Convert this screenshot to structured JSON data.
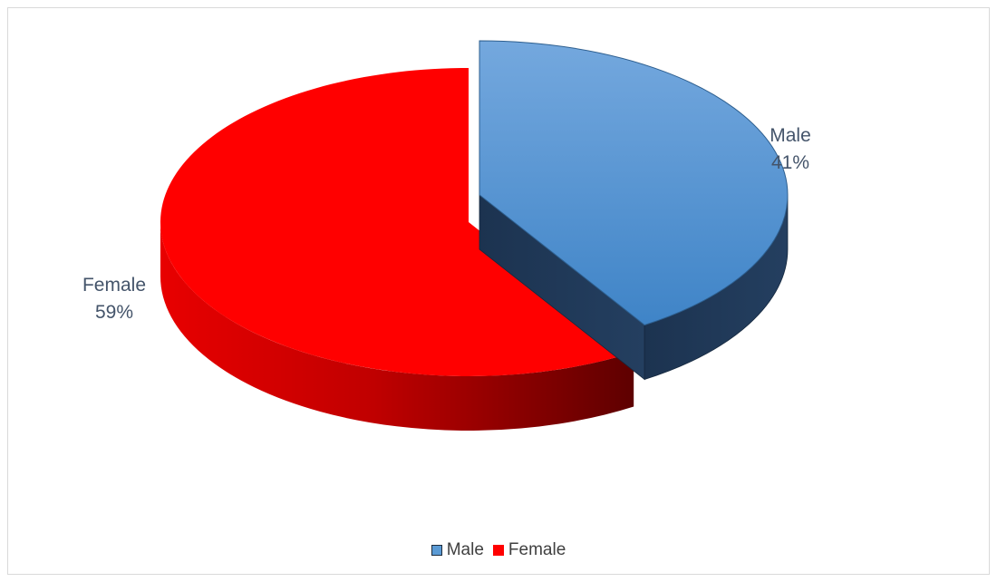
{
  "chart_data": {
    "type": "pie",
    "title": "",
    "series": [
      {
        "categories": [
          "Male",
          "Female"
        ],
        "values": [
          41,
          59
        ],
        "unit": "%"
      }
    ],
    "data_labels": [
      "Male\n41%",
      "Female\n59%"
    ],
    "label_lines": [
      [
        "Male",
        "41%"
      ],
      [
        "Female",
        "59%"
      ]
    ],
    "colors": {
      "Male": {
        "top_light": "#6fa3db",
        "top_dark": "#3f84c7",
        "side": "#1f3a56",
        "legend_border": "#2f5597"
      },
      "Female": {
        "top": "#ff0000",
        "side_light": "#e00000",
        "side_dark": "#6a0000"
      }
    },
    "style": "3d-exploded",
    "legend_position": "bottom"
  }
}
